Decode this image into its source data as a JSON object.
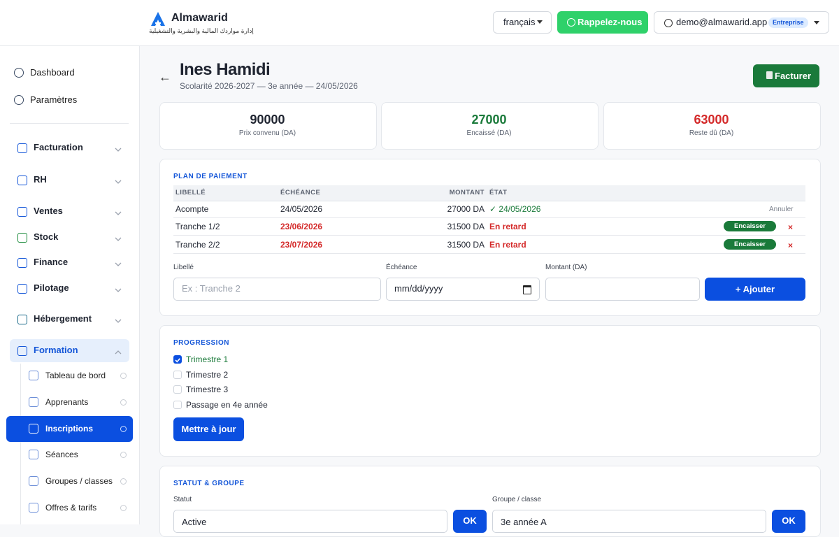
{
  "header": {
    "brand": "Almawarid",
    "tagline": "إدارة مواردك المالية والبشرية والتشغيلية",
    "language": "français",
    "callback": "Rappelez-nous",
    "account": "demo@almawarid.app",
    "plan": "Entreprise"
  },
  "sidebar": {
    "top": [
      "Dashboard",
      "Paramètres"
    ],
    "sections": [
      "Facturation",
      "RH",
      "Ventes",
      "Stock",
      "Finance",
      "Pilotage",
      "Hébergement",
      "Formation"
    ],
    "formation_items": [
      "Tableau de bord",
      "Apprenants",
      "Inscriptions",
      "Séances",
      "Groupes / classes",
      "Offres & tarifs"
    ]
  },
  "page": {
    "title": "Ines Hamidi",
    "subtitle": "Scolarité 2026-2027 — 3e année — 24/05/2026",
    "action": "Facturer"
  },
  "stats": [
    {
      "value": 90000,
      "label": "Prix convenu (DA)"
    },
    {
      "value": 27000,
      "label": "Encaissé (DA)"
    },
    {
      "value": 63000,
      "label": "Reste dû (DA)"
    }
  ],
  "payment_plan": {
    "title": "PLAN DE PAIEMENT",
    "columns": [
      "LIBELLÉ",
      "ÉCHÉANCE",
      "MONTANT",
      "ÉTAT"
    ],
    "rows": [
      {
        "label": "Acompte",
        "due": "24/05/2026",
        "amount": "27000 DA",
        "status": "✓ 24/05/2026",
        "late": false,
        "actions": [
          "Annuler"
        ]
      },
      {
        "label": "Tranche 1/2",
        "due": "23/06/2026",
        "amount": "31500 DA",
        "status": "En retard",
        "late": true,
        "actions": [
          "Encaisser",
          "×"
        ]
      },
      {
        "label": "Tranche 2/2",
        "due": "23/07/2026",
        "amount": "31500 DA",
        "status": "En retard",
        "late": true,
        "actions": [
          "Encaisser",
          "×"
        ]
      }
    ],
    "form": {
      "labels": [
        "Libellé",
        "Échéance",
        "Montant (DA)"
      ],
      "label_placeholder": "Ex : Tranche 2",
      "date_placeholder": "mm/dd/yyyy",
      "submit": "+ Ajouter"
    }
  },
  "progression": {
    "title": "PROGRESSION",
    "items": [
      {
        "label": "Trimestre 1",
        "checked": true
      },
      {
        "label": "Trimestre 2",
        "checked": false
      },
      {
        "label": "Trimestre 3",
        "checked": false
      },
      {
        "label": "Passage en 4e année",
        "checked": false
      }
    ],
    "submit": "Mettre à jour"
  },
  "status_group": {
    "title": "STATUT & GROUPE",
    "status_label": "Statut",
    "status_value": "Active",
    "group_label": "Groupe / classe",
    "group_value": "3e année A",
    "buttons": [
      "OK",
      "OK"
    ]
  }
}
